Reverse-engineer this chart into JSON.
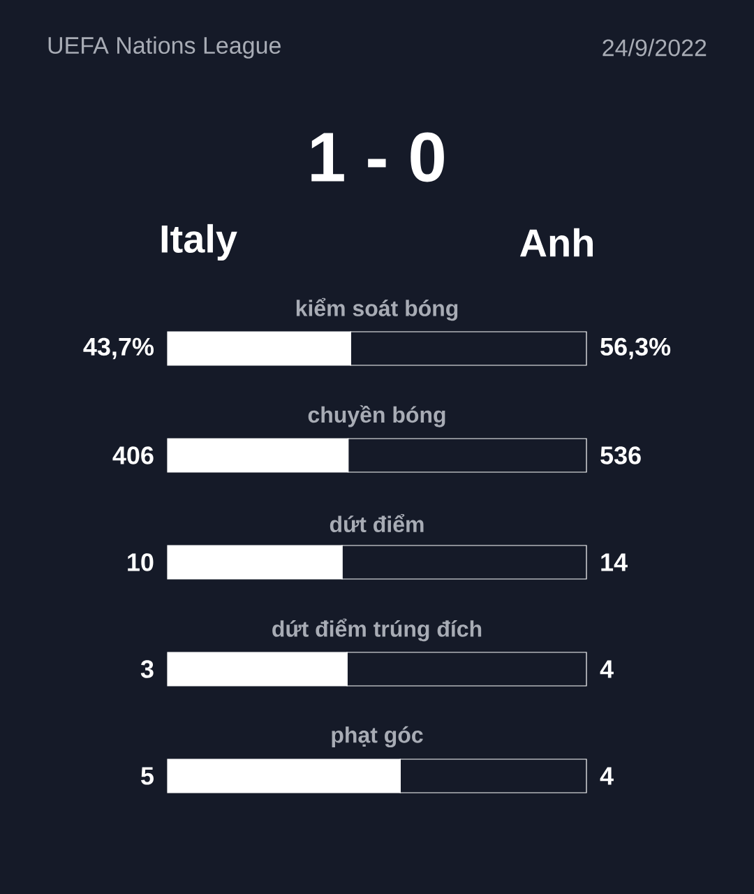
{
  "chart_data": [
    {
      "type": "bar",
      "orientation": "horizontal",
      "stacked": true,
      "title": "kiểm soát bóng",
      "annotations": [
        "UEFA Nations League",
        "24/9/2022",
        "1 - 0"
      ],
      "categories": [
        null
      ],
      "xlim": [
        0,
        100
      ],
      "series": [
        {
          "name": "Italy",
          "color": "#ffffff",
          "values": [
            43.7
          ],
          "value_labels": [
            "43,7%"
          ]
        },
        {
          "name": "Anh",
          "color": "#151a28",
          "values": [
            56.3
          ],
          "value_labels": [
            "56,3%"
          ]
        }
      ]
    },
    {
      "type": "bar",
      "orientation": "horizontal",
      "stacked": true,
      "title": "chuyền bóng",
      "categories": [
        null
      ],
      "xlim": [
        0,
        942
      ],
      "data_labels": true,
      "series": [
        {
          "color": "#ffffff",
          "values": [
            406
          ]
        },
        {
          "color": "#151a28",
          "values": [
            536
          ]
        }
      ]
    },
    {
      "type": "bar",
      "orientation": "horizontal",
      "stacked": true,
      "title": "dứt điểm",
      "categories": [
        null
      ],
      "xlim": [
        0,
        24
      ],
      "data_labels": true,
      "series": [
        {
          "color": "#ffffff",
          "values": [
            10
          ]
        },
        {
          "color": "#151a28",
          "values": [
            14
          ]
        }
      ]
    },
    {
      "type": "bar",
      "orientation": "horizontal",
      "stacked": true,
      "title": "dứt điểm trúng đích",
      "categories": [
        null
      ],
      "xlim": [
        0,
        7
      ],
      "data_labels": true,
      "series": [
        {
          "color": "#ffffff",
          "values": [
            3
          ]
        },
        {
          "color": "#151a28",
          "values": [
            4
          ]
        }
      ]
    },
    {
      "type": "bar",
      "orientation": "horizontal",
      "stacked": true,
      "title": "phạt góc",
      "categories": [
        null
      ],
      "xlim": [
        0,
        9
      ],
      "data_labels": true,
      "series": [
        {
          "color": "#ffffff",
          "values": [
            5
          ]
        },
        {
          "color": "#151a28",
          "values": [
            4
          ]
        }
      ]
    }
  ]
}
